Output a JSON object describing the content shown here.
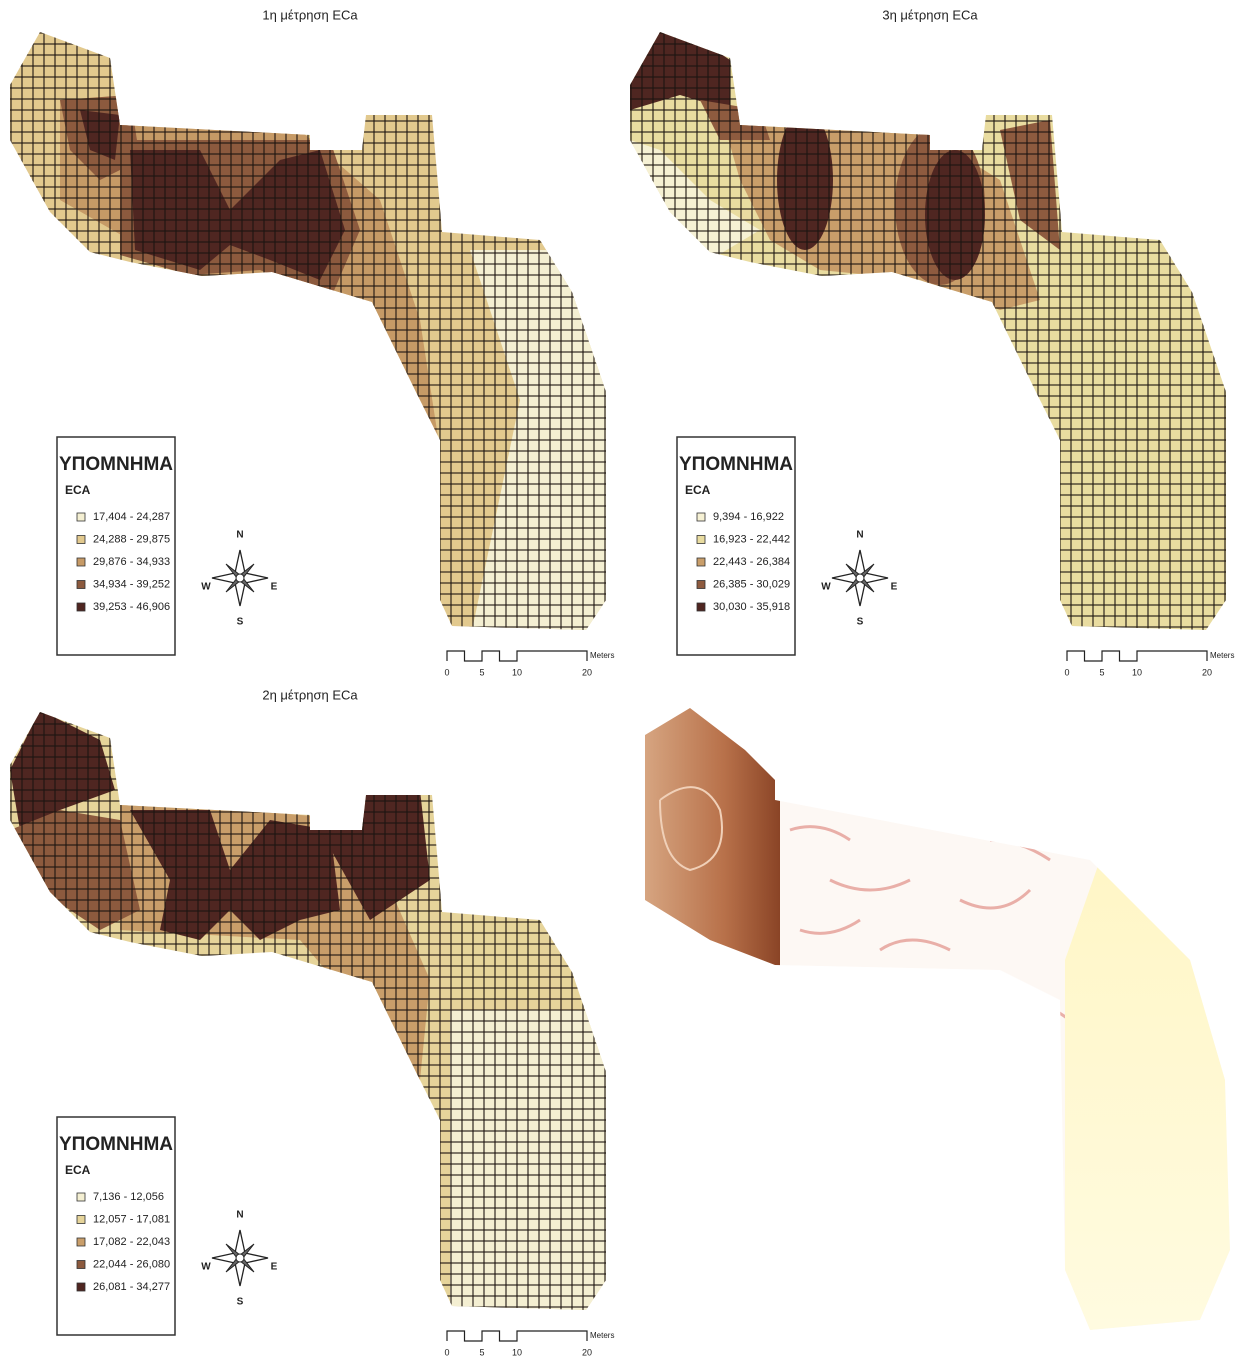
{
  "maps": [
    {
      "title": "1η μέτρηση ECa",
      "legend": {
        "heading": "ΥΠΟΜΝΗΜΑ",
        "field": "ECA",
        "classes": [
          "17,404 - 24,287",
          "24,288 - 29,875",
          "29,876 - 34,933",
          "34,934 - 39,252",
          "39,253 - 46,906"
        ],
        "colors": [
          "#f4efd2",
          "#e2c98e",
          "#c69a66",
          "#8c5a3e",
          "#4f2621"
        ]
      },
      "compass": {
        "n": "N",
        "e": "E",
        "s": "S",
        "w": "W"
      },
      "scale": {
        "ticks": [
          0,
          5,
          10,
          20
        ],
        "unit": "Meters"
      }
    },
    {
      "title": "3η μέτρηση ECa",
      "legend": {
        "heading": "ΥΠΟΜΝΗΜΑ",
        "field": "ECA",
        "classes": [
          "9,394 - 16,922",
          "16,923 - 22,442",
          "22,443 - 26,384",
          "26,385 - 30,029",
          "30,030 - 35,918"
        ],
        "colors": [
          "#f6f1d4",
          "#e9dca0",
          "#c99e6a",
          "#8e5b3f",
          "#4f2621"
        ]
      },
      "compass": {
        "n": "N",
        "e": "E",
        "s": "S",
        "w": "W"
      },
      "scale": {
        "ticks": [
          0,
          5,
          10,
          20
        ],
        "unit": "Meters"
      }
    },
    {
      "title": "2η μέτρηση ECa",
      "legend": {
        "heading": "ΥΠΟΜΝΗΜΑ",
        "field": "ECA",
        "classes": [
          "7,136 - 12,056",
          "12,057 - 17,081",
          "17,082 - 22,043",
          "22,044 - 26,080",
          "26,081 - 34,277"
        ],
        "colors": [
          "#f4efd2",
          "#e6d49a",
          "#c99e6a",
          "#8c5a3e",
          "#4f2621"
        ]
      },
      "compass": {
        "n": "N",
        "e": "E",
        "s": "S",
        "w": "W"
      },
      "scale": {
        "ticks": [
          0,
          5,
          10,
          20
        ],
        "unit": "Meters"
      }
    }
  ]
}
